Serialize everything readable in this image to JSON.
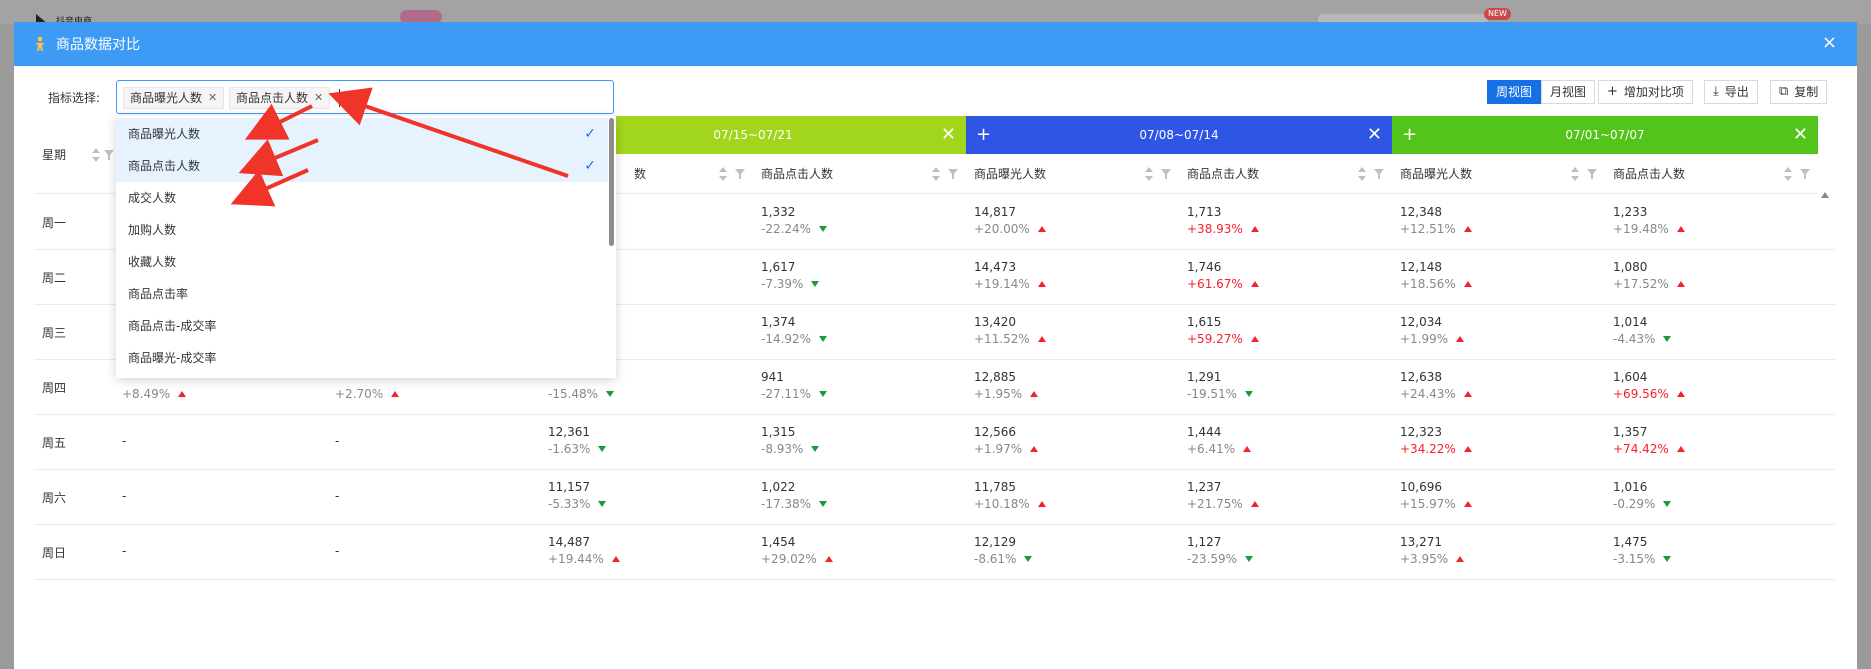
{
  "modal": {
    "title": "商品数据对比",
    "close_icon": "×"
  },
  "toolbar": {
    "metric_label": "指标选择:",
    "selected_metrics": [
      "商品曝光人数",
      "商品点击人数"
    ],
    "view_week": "周视图",
    "view_month": "月视图",
    "add_compare": "增加对比项",
    "export": "导出",
    "copy": "复制"
  },
  "dropdown": {
    "options": [
      {
        "label": "商品曝光人数",
        "checked": true
      },
      {
        "label": "商品点击人数",
        "checked": true
      },
      {
        "label": "成交人数",
        "checked": false
      },
      {
        "label": "加购人数",
        "checked": false
      },
      {
        "label": "收藏人数",
        "checked": false
      },
      {
        "label": "商品点击率",
        "checked": false
      },
      {
        "label": "商品点击-成交率",
        "checked": false
      },
      {
        "label": "商品曝光-成交率",
        "checked": false
      }
    ]
  },
  "table": {
    "week_header": "星期",
    "periods": [
      {
        "label": "",
        "color": "#ffffff"
      },
      {
        "label": "07/15~07/21",
        "color": "#a2d61c"
      },
      {
        "label": "07/08~07/14",
        "color": "#2f55e4"
      },
      {
        "label": "07/01~07/07",
        "color": "#52c41a"
      }
    ],
    "sub_headers": [
      "商品曝光人数",
      "商品点击人数"
    ],
    "partial_sub_header": "数",
    "rows": [
      {
        "day": "周一",
        "cells": [
          null,
          null,
          null,
          {
            "v": "1,332",
            "p": "-22.24%",
            "d": "down"
          },
          {
            "v": "14,817",
            "p": "+20.00%",
            "d": "up"
          },
          {
            "v": "1,713",
            "p": "+38.93%",
            "d": "up",
            "hl": true
          },
          {
            "v": "12,348",
            "p": "+12.51%",
            "d": "up"
          },
          {
            "v": "1,233",
            "p": "+19.48%",
            "d": "up"
          }
        ]
      },
      {
        "day": "周二",
        "cells": [
          null,
          null,
          null,
          {
            "v": "1,617",
            "p": "-7.39%",
            "d": "down"
          },
          {
            "v": "14,473",
            "p": "+19.14%",
            "d": "up"
          },
          {
            "v": "1,746",
            "p": "+61.67%",
            "d": "up",
            "hl": true
          },
          {
            "v": "12,148",
            "p": "+18.56%",
            "d": "up"
          },
          {
            "v": "1,080",
            "p": "+17.52%",
            "d": "up"
          }
        ]
      },
      {
        "day": "周三",
        "cells": [
          null,
          null,
          null,
          {
            "v": "1,374",
            "p": "-14.92%",
            "d": "down"
          },
          {
            "v": "13,420",
            "p": "+11.52%",
            "d": "up"
          },
          {
            "v": "1,615",
            "p": "+59.27%",
            "d": "up",
            "hl": true
          },
          {
            "v": "12,034",
            "p": "+1.99%",
            "d": "up"
          },
          {
            "v": "1,014",
            "p": "-4.43%",
            "d": "down"
          }
        ]
      },
      {
        "day": "周四",
        "cells": [
          {
            "v": "",
            "p": "+8.49%",
            "d": "up"
          },
          {
            "v": "",
            "p": "+2.70%",
            "d": "up"
          },
          {
            "v": "",
            "p": "-15.48%",
            "d": "down"
          },
          {
            "v": "941",
            "p": "-27.11%",
            "d": "down"
          },
          {
            "v": "12,885",
            "p": "+1.95%",
            "d": "up"
          },
          {
            "v": "1,291",
            "p": "-19.51%",
            "d": "down"
          },
          {
            "v": "12,638",
            "p": "+24.43%",
            "d": "up"
          },
          {
            "v": "1,604",
            "p": "+69.56%",
            "d": "up",
            "hl": true
          }
        ]
      },
      {
        "day": "周五",
        "cells": [
          "-",
          "-",
          {
            "v": "12,361",
            "p": "-1.63%",
            "d": "down"
          },
          {
            "v": "1,315",
            "p": "-8.93%",
            "d": "down"
          },
          {
            "v": "12,566",
            "p": "+1.97%",
            "d": "up"
          },
          {
            "v": "1,444",
            "p": "+6.41%",
            "d": "up"
          },
          {
            "v": "12,323",
            "p": "+34.22%",
            "d": "up",
            "hl": true
          },
          {
            "v": "1,357",
            "p": "+74.42%",
            "d": "up",
            "hl": true
          }
        ]
      },
      {
        "day": "周六",
        "cells": [
          "-",
          "-",
          {
            "v": "11,157",
            "p": "-5.33%",
            "d": "down"
          },
          {
            "v": "1,022",
            "p": "-17.38%",
            "d": "down"
          },
          {
            "v": "11,785",
            "p": "+10.18%",
            "d": "up"
          },
          {
            "v": "1,237",
            "p": "+21.75%",
            "d": "up"
          },
          {
            "v": "10,696",
            "p": "+15.97%",
            "d": "up"
          },
          {
            "v": "1,016",
            "p": "-0.29%",
            "d": "down"
          }
        ]
      },
      {
        "day": "周日",
        "cells": [
          "-",
          "-",
          {
            "v": "14,487",
            "p": "+19.44%",
            "d": "up"
          },
          {
            "v": "1,454",
            "p": "+29.02%",
            "d": "up"
          },
          {
            "v": "12,129",
            "p": "-8.61%",
            "d": "down"
          },
          {
            "v": "1,127",
            "p": "-23.59%",
            "d": "down"
          },
          {
            "v": "13,271",
            "p": "+3.95%",
            "d": "up"
          },
          {
            "v": "1,475",
            "p": "-3.15%",
            "d": "down"
          }
        ]
      }
    ]
  },
  "background": {
    "new_badge": "NEW",
    "partial_title": "抖音电商"
  },
  "colors": {
    "header_blue": "#3d9bf5",
    "accent_blue": "#1570e6",
    "up_red": "#f5222d",
    "down_green": "#1a9b3a"
  }
}
